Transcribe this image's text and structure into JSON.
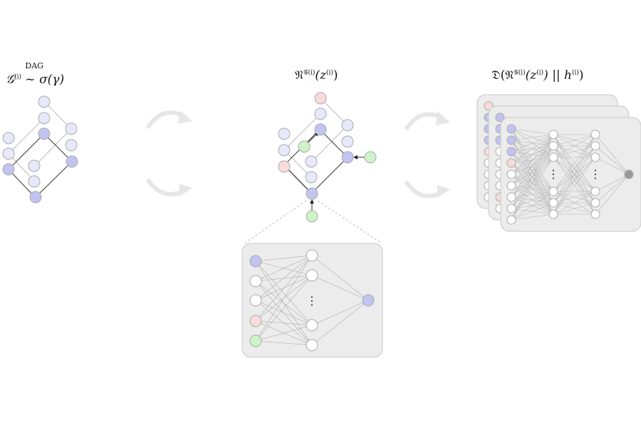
{
  "titles": {
    "sampling": {
      "prefix": "𝒢",
      "sup": "(i)",
      "over": "DAG",
      "op": "~",
      "rhs": "σ(γ)"
    },
    "network": {
      "prefix": "𝔑",
      "sup": "𝒢(i)",
      "arg": "(z",
      "arg_sup": "(i)",
      "close": ")"
    },
    "discriminator": {
      "prefix": "𝔇(𝔑",
      "sup": "𝒢(i)",
      "arg": "(z",
      "arg_sup": "(i)",
      "mid": ") || h",
      "h_sup": "(i)",
      "close": ")"
    }
  },
  "ellipsis": "⋮",
  "colors": {
    "node_blue": "#c3c3f2",
    "node_blue_light": "#e8e8fb",
    "node_red": "#f8dcdc",
    "node_green": "#cdf3c8",
    "node_white": "#ffffff",
    "output_gray": "#9a9a9a",
    "panel_bg": "#ececec",
    "edge": "#aaaaaa",
    "arrow_dark": "#222222",
    "flow_arrow": "#e6e6e6"
  }
}
